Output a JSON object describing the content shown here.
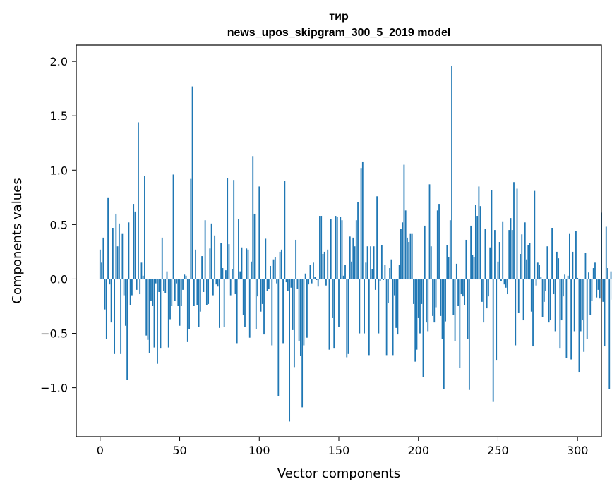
{
  "chart_data": {
    "type": "bar",
    "title_line1": "тир",
    "title_line2": "news_upos_skipgram_300_5_2019 model",
    "xlabel": "Vector components",
    "ylabel": "Components values",
    "xlim": [
      -15,
      315
    ],
    "ylim": [
      -1.45,
      2.15
    ],
    "xticks": [
      0,
      50,
      100,
      150,
      200,
      250,
      300
    ],
    "xtick_labels": [
      "0",
      "50",
      "100",
      "150",
      "200",
      "250",
      "300"
    ],
    "yticks": [
      -1.0,
      -0.5,
      0.0,
      0.5,
      1.0,
      1.5,
      2.0
    ],
    "ytick_labels": [
      "−1.0",
      "−0.5",
      "0.0",
      "0.5",
      "1.0",
      "1.5",
      "2.0"
    ],
    "bar_color": "#1f77b4",
    "grid": false,
    "values": [
      0.27,
      0.15,
      0.38,
      -0.28,
      -0.55,
      0.75,
      -0.05,
      -0.4,
      0.47,
      -0.69,
      0.6,
      0.3,
      0.51,
      -0.69,
      0.42,
      -0.15,
      -0.43,
      -0.93,
      0.52,
      -0.24,
      -0.15,
      0.69,
      0.62,
      -0.1,
      1.44,
      -0.14,
      0.15,
      0.03,
      0.95,
      -0.52,
      -0.56,
      -0.68,
      -0.2,
      -0.25,
      -0.63,
      -0.04,
      -0.78,
      -0.12,
      -0.64,
      0.38,
      -0.11,
      -0.13,
      0.07,
      -0.63,
      -0.37,
      -0.25,
      0.96,
      -0.2,
      -0.04,
      -0.25,
      -0.43,
      -0.25,
      -0.1,
      0.04,
      0.03,
      -0.58,
      -0.46,
      0.92,
      1.77,
      -0.25,
      0.27,
      -0.24,
      -0.44,
      -0.3,
      0.21,
      -0.12,
      0.54,
      -0.24,
      -0.23,
      0.28,
      0.51,
      -0.15,
      0.4,
      -0.05,
      -0.07,
      -0.45,
      0.33,
      0.1,
      -0.44,
      0.08,
      0.93,
      0.32,
      -0.15,
      0.09,
      0.91,
      -0.14,
      -0.59,
      0.55,
      0.07,
      0.29,
      -0.33,
      -0.44,
      0.28,
      0.27,
      -0.54,
      0.16,
      1.13,
      0.6,
      -0.46,
      -0.16,
      0.85,
      -0.3,
      -0.23,
      -0.51,
      0.37,
      -0.11,
      -0.09,
      0.12,
      -0.61,
      0.18,
      0.2,
      -0.04,
      -1.08,
      0.25,
      0.27,
      -0.59,
      0.9,
      -0.03,
      -0.11,
      -1.31,
      -0.08,
      -0.47,
      -0.81,
      0.36,
      -0.09,
      -0.57,
      -0.71,
      -1.18,
      -0.61,
      0.05,
      -0.54,
      -0.05,
      0.13,
      -0.04,
      0.15,
      0.02,
      -0.01,
      -0.07,
      0.58,
      0.58,
      0.23,
      0.25,
      -0.06,
      0.27,
      -0.65,
      0.55,
      -0.36,
      -0.64,
      0.58,
      0.57,
      -0.44,
      0.57,
      0.54,
      0.03,
      0.13,
      -0.72,
      -0.69,
      0.39,
      0.16,
      0.38,
      0.3,
      0.54,
      0.71,
      -0.5,
      1.02,
      1.08,
      -0.5,
      0.15,
      0.3,
      -0.7,
      0.3,
      0.09,
      0.3,
      -0.1,
      0.76,
      -0.5,
      -0.02,
      0.31,
      -0.01,
      0.13,
      -0.7,
      -0.22,
      0.1,
      0.18,
      -0.7,
      -0.15,
      -0.45,
      -0.51,
      0.13,
      0.46,
      0.52,
      1.05,
      0.63,
      0.38,
      0.34,
      0.42,
      0.42,
      -0.23,
      -0.76,
      -0.65,
      -0.36,
      -0.5,
      -0.23,
      -0.9,
      0.49,
      -0.4,
      -0.48,
      0.87,
      0.3,
      -0.34,
      -0.4,
      -0.26,
      0.63,
      0.69,
      -0.34,
      -0.55,
      -1.01,
      -0.39,
      0.31,
      0.2,
      0.54,
      1.96,
      -0.33,
      -0.57,
      0.14,
      -0.25,
      -0.82,
      -0.14,
      -0.16,
      -0.24,
      0.36,
      -0.55,
      -1.02,
      0.49,
      0.22,
      0.2,
      0.68,
      0.58,
      0.85,
      0.67,
      -0.21,
      -0.4,
      0.46,
      -0.27,
      -0.16,
      0.29,
      0.82,
      -1.13,
      0.45,
      -0.75,
      0.16,
      0.34,
      -0.02,
      0.53,
      -0.05,
      -0.08,
      -0.14,
      0.45,
      0.56,
      0.45,
      0.89,
      -0.61,
      0.83,
      -0.31,
      0.23,
      0.41,
      -0.38,
      0.52,
      0.18,
      0.31,
      0.33,
      -0.3,
      -0.62,
      0.81,
      -0.06,
      0.15,
      0.13,
      0.02,
      -0.35,
      -0.21,
      -0.11,
      0.3,
      -0.4,
      -0.38,
      0.47,
      -0.14,
      -0.48,
      0.25,
      0.19,
      -0.64,
      -0.38,
      -0.16,
      0.04,
      -0.73,
      0.03,
      0.42,
      -0.74,
      0.25,
      -0.48,
      0.44,
      0.01,
      -0.86,
      -0.48,
      -0.38,
      -0.67,
      0.24,
      -0.55,
      0.06,
      -0.33,
      -0.2,
      0.1,
      0.15,
      -0.17,
      -0.1,
      -0.18,
      0.61,
      -0.21,
      -0.62,
      0.48,
      0.1,
      -1.01,
      0.07,
      -0.19
    ]
  }
}
